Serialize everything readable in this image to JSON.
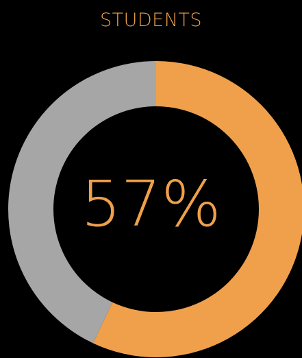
{
  "chart_data": {
    "type": "pie",
    "title": "STUDENTS",
    "center_label": "57%",
    "values": [
      57,
      43
    ],
    "colors": [
      "#f0a04b",
      "#a6a6a6"
    ],
    "background": "#000000"
  }
}
